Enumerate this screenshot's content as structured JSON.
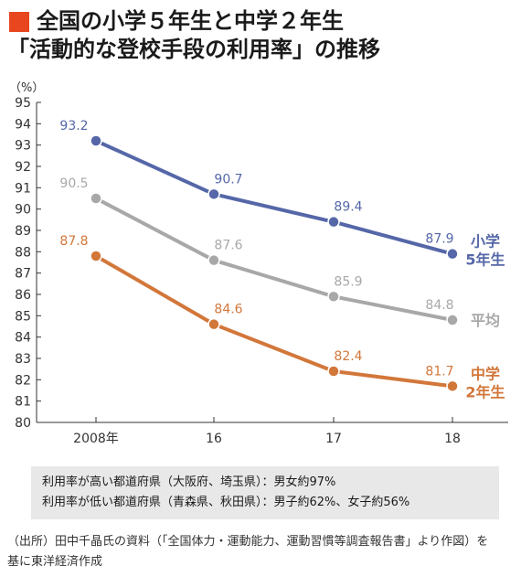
{
  "header": {
    "title_line1": "全国の小学５年生と中学２年生",
    "title_line2": "「活動的な登校手段の利用率」の推移"
  },
  "colors": {
    "title_mark": "#e8461e",
    "elementary": "#5567a8",
    "average": "#a8a8a8",
    "junior_high": "#d2773a"
  },
  "chart_data": {
    "type": "line",
    "unit_label": "（%）",
    "categories": [
      "2008年",
      "16",
      "17",
      "18"
    ],
    "ylim": [
      80,
      95
    ],
    "yticks": [
      80,
      81,
      82,
      83,
      84,
      85,
      86,
      87,
      88,
      89,
      90,
      91,
      92,
      93,
      94,
      95
    ],
    "grid": false,
    "series": [
      {
        "key": "elementary",
        "name_lines": [
          "小学",
          "5年生"
        ],
        "color": "#5567a8",
        "values": [
          93.2,
          90.7,
          89.4,
          87.9
        ],
        "labels": [
          "93.2",
          "90.7",
          "89.4",
          "87.9"
        ]
      },
      {
        "key": "average",
        "name_lines": [
          "平均"
        ],
        "color": "#a8a8a8",
        "values": [
          90.5,
          87.6,
          85.9,
          84.8
        ],
        "labels": [
          "90.5",
          "87.6",
          "85.9",
          "84.8"
        ]
      },
      {
        "key": "junior_high",
        "name_lines": [
          "中学",
          "2年生"
        ],
        "color": "#d2773a",
        "values": [
          87.8,
          84.6,
          82.4,
          81.7
        ],
        "labels": [
          "87.8",
          "84.6",
          "82.4",
          "81.7"
        ]
      }
    ]
  },
  "notes": {
    "line1": "利用率が高い都道府県（大阪府、埼玉県）：男女約97%",
    "line2": "利用率が低い都道府県（青森県、秋田県）：男子約62%、女子約56%"
  },
  "source": {
    "line1": "（出所）田中千晶氏の資料（「全国体力・運動能力、運動習慣等調査報告書」より作図）を",
    "line2": "基に東洋経済作成"
  }
}
